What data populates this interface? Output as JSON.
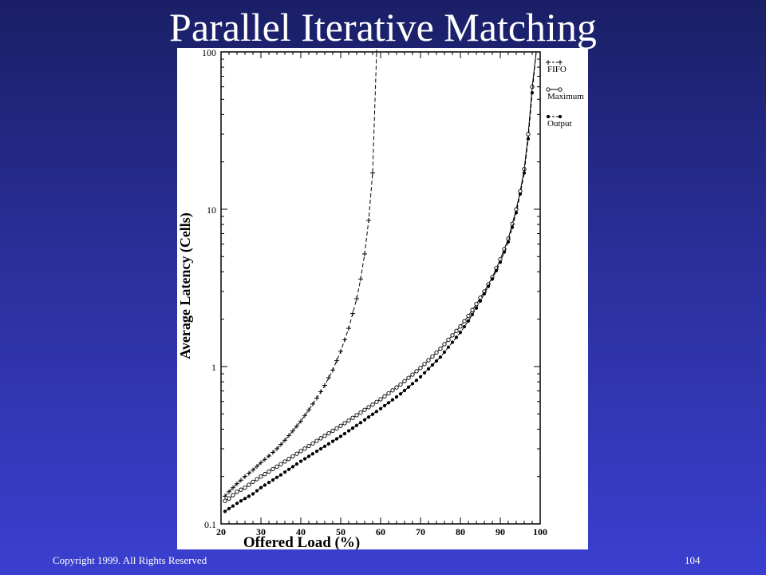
{
  "slide": {
    "title": "Parallel Iterative Matching",
    "copyright": "Copyright 1999. All Rights Reserved",
    "page_number": "104"
  },
  "chart_data": {
    "type": "line",
    "xlabel": "Offered Load (%)",
    "ylabel": "Average Latency (Cells)",
    "xlim": [
      20,
      100
    ],
    "ylim": [
      0.1,
      100
    ],
    "yscale": "log",
    "x_ticks": [
      "20",
      "30",
      "40",
      "50",
      "60",
      "70",
      "80",
      "90",
      "100"
    ],
    "y_ticks": [
      {
        "label": "0.1",
        "value": 0.1
      },
      {
        "label": "1",
        "value": 1
      },
      {
        "label": "10",
        "value": 10
      },
      {
        "label": "100",
        "value": 100
      }
    ],
    "grid": false,
    "legend_position": "top-right, outside plot",
    "series": [
      {
        "name": "FIFO",
        "marker": "plus",
        "dash": true,
        "x": [
          21,
          22,
          24,
          26,
          28,
          30,
          32,
          34,
          36,
          38,
          40,
          42,
          44,
          46,
          48,
          50,
          52,
          54,
          55,
          56,
          57,
          58,
          59,
          60
        ],
        "y": [
          0.15,
          0.16,
          0.18,
          0.2,
          0.22,
          0.245,
          0.27,
          0.3,
          0.34,
          0.39,
          0.45,
          0.53,
          0.63,
          0.76,
          0.95,
          1.25,
          1.75,
          2.7,
          3.6,
          5.2,
          8.5,
          17,
          100,
          100
        ]
      },
      {
        "name": "Maximum",
        "marker": "circle",
        "dash": false,
        "x": [
          21,
          22,
          24,
          26,
          28,
          30,
          35,
          40,
          45,
          50,
          55,
          60,
          65,
          70,
          75,
          80,
          82,
          84,
          86,
          88,
          90,
          92,
          94,
          95,
          96,
          97,
          98,
          99
        ],
        "y": [
          0.14,
          0.145,
          0.16,
          0.17,
          0.185,
          0.2,
          0.24,
          0.29,
          0.35,
          0.42,
          0.51,
          0.62,
          0.77,
          0.98,
          1.3,
          1.8,
          2.1,
          2.5,
          3.0,
          3.7,
          4.8,
          6.5,
          10,
          13,
          18,
          30,
          60,
          100
        ]
      },
      {
        "name": "Output",
        "marker": "dot",
        "dash": true,
        "x": [
          21,
          22,
          24,
          26,
          28,
          30,
          35,
          40,
          45,
          50,
          55,
          60,
          65,
          70,
          75,
          80,
          82,
          84,
          86,
          88,
          90,
          92,
          94,
          95,
          96,
          97,
          98,
          99
        ],
        "y": [
          0.12,
          0.125,
          0.135,
          0.145,
          0.155,
          0.17,
          0.205,
          0.25,
          0.3,
          0.36,
          0.44,
          0.54,
          0.67,
          0.86,
          1.15,
          1.65,
          1.95,
          2.35,
          2.9,
          3.6,
          4.6,
          6.2,
          9.5,
          12.5,
          17,
          28,
          55,
          100
        ]
      }
    ]
  }
}
